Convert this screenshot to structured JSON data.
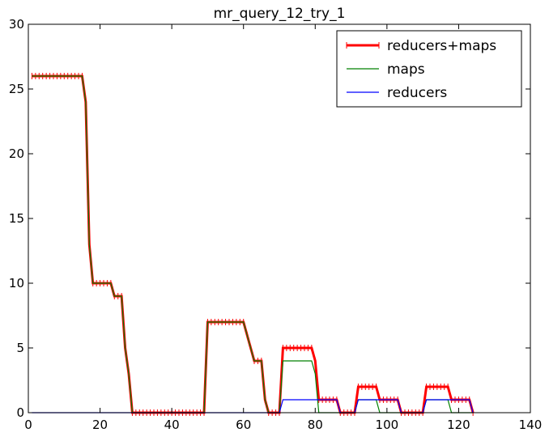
{
  "chart_data": {
    "type": "line",
    "title": "mr_query_12_try_1",
    "xlabel": "",
    "ylabel": "",
    "xlim": [
      0,
      140
    ],
    "ylim": [
      0,
      30
    ],
    "xticks": [
      0,
      20,
      40,
      60,
      80,
      100,
      120,
      140
    ],
    "yticks": [
      0,
      5,
      10,
      15,
      20,
      25,
      30
    ],
    "grid": false,
    "legend_position": "upper-right",
    "x": [
      1,
      2,
      3,
      4,
      5,
      6,
      7,
      8,
      9,
      10,
      11,
      12,
      13,
      14,
      15,
      16,
      17,
      18,
      19,
      20,
      21,
      22,
      23,
      24,
      25,
      26,
      27,
      28,
      29,
      30,
      31,
      32,
      33,
      34,
      35,
      36,
      37,
      38,
      39,
      40,
      41,
      42,
      43,
      44,
      45,
      46,
      47,
      48,
      49,
      50,
      51,
      52,
      53,
      54,
      55,
      56,
      57,
      58,
      59,
      60,
      61,
      62,
      63,
      64,
      65,
      66,
      67,
      68,
      69,
      70,
      71,
      72,
      73,
      74,
      75,
      76,
      77,
      78,
      79,
      80,
      81,
      82,
      83,
      84,
      85,
      86,
      87,
      88,
      89,
      90,
      91,
      92,
      93,
      94,
      95,
      96,
      97,
      98,
      99,
      100,
      101,
      102,
      103,
      104,
      105,
      106,
      107,
      108,
      109,
      110,
      111,
      112,
      113,
      114,
      115,
      116,
      117,
      118,
      119,
      120,
      121,
      122,
      123,
      124
    ],
    "series": [
      {
        "name": "reducers+maps",
        "color": "#ff0000",
        "style": "thick-with-tick-markers",
        "values": [
          26,
          26,
          26,
          26,
          26,
          26,
          26,
          26,
          26,
          26,
          26,
          26,
          26,
          26,
          26,
          24,
          13,
          10,
          10,
          10,
          10,
          10,
          10,
          9,
          9,
          9,
          5,
          3,
          0,
          0,
          0,
          0,
          0,
          0,
          0,
          0,
          0,
          0,
          0,
          0,
          0,
          0,
          0,
          0,
          0,
          0,
          0,
          0,
          0,
          7,
          7,
          7,
          7,
          7,
          7,
          7,
          7,
          7,
          7,
          7,
          6,
          5,
          4,
          4,
          4,
          1,
          0,
          0,
          0,
          0,
          5,
          5,
          5,
          5,
          5,
          5,
          5,
          5,
          5,
          4,
          1,
          1,
          1,
          1,
          1,
          1,
          0,
          0,
          0,
          0,
          0,
          2,
          2,
          2,
          2,
          2,
          2,
          1,
          1,
          1,
          1,
          1,
          1,
          0,
          0,
          0,
          0,
          0,
          0,
          0,
          2,
          2,
          2,
          2,
          2,
          2,
          2,
          1,
          1,
          1,
          1,
          1,
          1,
          0
        ]
      },
      {
        "name": "maps",
        "color": "#008000",
        "style": "thin",
        "values": [
          26,
          26,
          26,
          26,
          26,
          26,
          26,
          26,
          26,
          26,
          26,
          26,
          26,
          26,
          26,
          24,
          13,
          10,
          10,
          10,
          10,
          10,
          10,
          9,
          9,
          9,
          5,
          3,
          0,
          0,
          0,
          0,
          0,
          0,
          0,
          0,
          0,
          0,
          0,
          0,
          0,
          0,
          0,
          0,
          0,
          0,
          0,
          0,
          0,
          7,
          7,
          7,
          7,
          7,
          7,
          7,
          7,
          7,
          7,
          7,
          6,
          5,
          4,
          4,
          4,
          1,
          0,
          0,
          0,
          0,
          4,
          4,
          4,
          4,
          4,
          4,
          4,
          4,
          4,
          3,
          0,
          0,
          0,
          0,
          0,
          0,
          0,
          0,
          0,
          0,
          0,
          1,
          1,
          1,
          1,
          1,
          1,
          0,
          0,
          0,
          0,
          0,
          0,
          0,
          0,
          0,
          0,
          0,
          0,
          0,
          1,
          1,
          1,
          1,
          1,
          1,
          1,
          0,
          0,
          0,
          0,
          0,
          0,
          0
        ]
      },
      {
        "name": "reducers",
        "color": "#0000ff",
        "style": "thin",
        "values": [
          0,
          0,
          0,
          0,
          0,
          0,
          0,
          0,
          0,
          0,
          0,
          0,
          0,
          0,
          0,
          0,
          0,
          0,
          0,
          0,
          0,
          0,
          0,
          0,
          0,
          0,
          0,
          0,
          0,
          0,
          0,
          0,
          0,
          0,
          0,
          0,
          0,
          0,
          0,
          0,
          0,
          0,
          0,
          0,
          0,
          0,
          0,
          0,
          0,
          0,
          0,
          0,
          0,
          0,
          0,
          0,
          0,
          0,
          0,
          0,
          0,
          0,
          0,
          0,
          0,
          0,
          0,
          0,
          0,
          0,
          1,
          1,
          1,
          1,
          1,
          1,
          1,
          1,
          1,
          1,
          1,
          1,
          1,
          1,
          1,
          1,
          0,
          0,
          0,
          0,
          0,
          1,
          1,
          1,
          1,
          1,
          1,
          1,
          1,
          1,
          1,
          1,
          1,
          0,
          0,
          0,
          0,
          0,
          0,
          0,
          1,
          1,
          1,
          1,
          1,
          1,
          1,
          1,
          1,
          1,
          1,
          1,
          1,
          0
        ]
      }
    ]
  }
}
